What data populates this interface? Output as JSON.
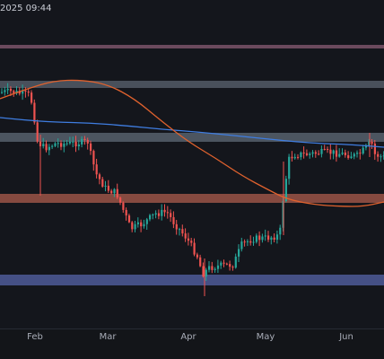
{
  "header": {
    "timestamp_fragment": "2025 09:44"
  },
  "chart_data": {
    "type": "candlestick",
    "title": "",
    "x_ticks": [
      "Feb",
      "Mar",
      "Apr",
      "May",
      "Jun"
    ],
    "grid": false,
    "zones": [
      {
        "color": "#7a5368",
        "level_frac": [
          0.125,
          0.135
        ]
      },
      {
        "color": "#525a66",
        "level_frac": [
          0.225,
          0.245
        ]
      },
      {
        "color": "#56606c",
        "level_frac": [
          0.37,
          0.395
        ]
      },
      {
        "color": "#9a5446",
        "level_frac": [
          0.54,
          0.565
        ]
      },
      {
        "color": "#4e5a98",
        "level_frac": [
          0.765,
          0.795
        ]
      }
    ],
    "ma_series": [
      {
        "color": "#e0622e",
        "description": "long moving average"
      },
      {
        "color": "#3f7de0",
        "description": "slower moving average"
      }
    ],
    "colors": {
      "up": "#26a69a",
      "down": "#ef5350",
      "background": "#14161c",
      "axis": "#262a33"
    }
  }
}
